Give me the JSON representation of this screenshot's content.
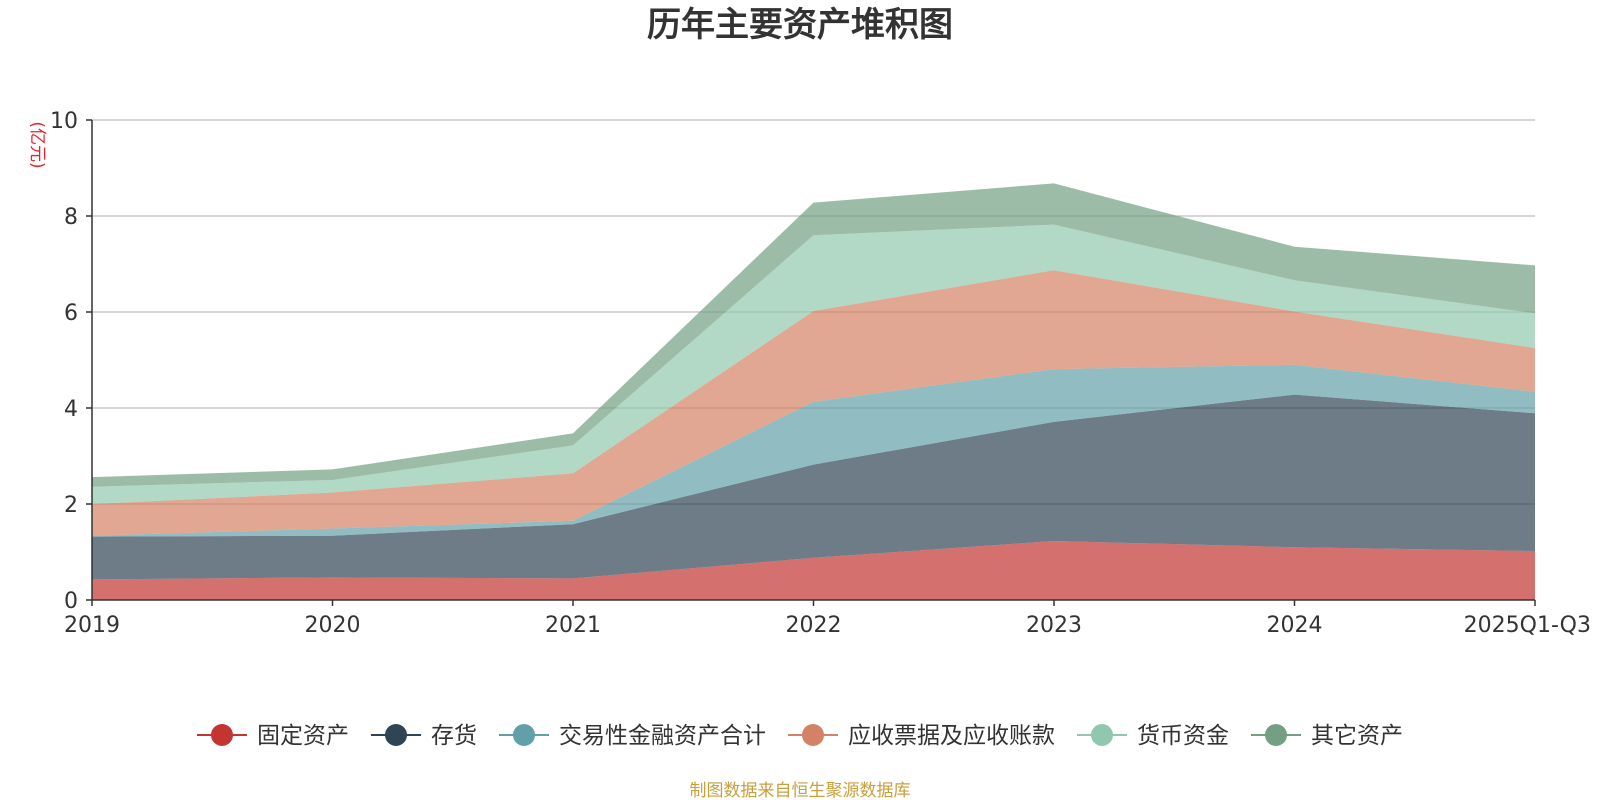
{
  "chart_data": {
    "type": "area",
    "stacked": true,
    "title": "历年主要资产堆积图",
    "ylabel": "(亿元)",
    "xlabel": "",
    "categories": [
      "2019",
      "2020",
      "2021",
      "2022",
      "2023",
      "2024",
      "2025Q1-Q3"
    ],
    "ylim": [
      0,
      10
    ],
    "yticks": [
      0,
      2,
      4,
      6,
      8,
      10
    ],
    "grid": true,
    "legend_position": "bottom",
    "series": [
      {
        "name": "固定资产",
        "color": "#c23531",
        "values": [
          0.43,
          0.47,
          0.45,
          0.88,
          1.23,
          1.1,
          1.02
        ]
      },
      {
        "name": "存货",
        "color": "#2f4554",
        "values": [
          0.89,
          0.87,
          1.13,
          1.94,
          2.48,
          3.18,
          2.87
        ]
      },
      {
        "name": "交易性金融资产合计",
        "color": "#61a0a8",
        "values": [
          0.02,
          0.15,
          0.07,
          1.31,
          1.1,
          0.62,
          0.45
        ]
      },
      {
        "name": "应收票据及应收账款",
        "color": "#d48265",
        "values": [
          0.66,
          0.75,
          0.99,
          1.89,
          2.06,
          1.11,
          0.91
        ]
      },
      {
        "name": "货币资金",
        "color": "#91c7ae",
        "values": [
          0.36,
          0.26,
          0.58,
          1.58,
          0.95,
          0.65,
          0.72
        ]
      },
      {
        "name": "其它资产",
        "color": "#749f83",
        "values": [
          0.2,
          0.22,
          0.25,
          0.68,
          0.86,
          0.7,
          1.0
        ]
      }
    ],
    "source": "制图数据来自恒生聚源数据库"
  }
}
